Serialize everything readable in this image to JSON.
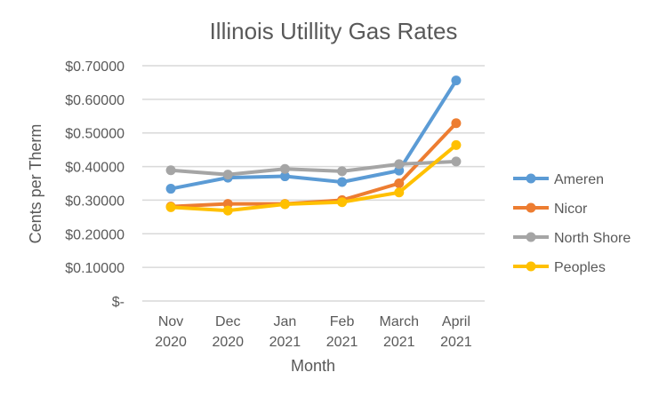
{
  "chart_data": {
    "type": "line",
    "title": "Illinois Utillity Gas Rates",
    "xlabel": "Month",
    "ylabel": "Cents per Therm",
    "categories": [
      [
        "Nov",
        "2020"
      ],
      [
        "Dec",
        "2020"
      ],
      [
        "Jan",
        "2021"
      ],
      [
        "Feb",
        "2021"
      ],
      [
        "March",
        "2021"
      ],
      [
        "April",
        "2021"
      ]
    ],
    "ylim": [
      0,
      0.7
    ],
    "yticks": [
      {
        "value": 0,
        "label": "$-"
      },
      {
        "value": 0.1,
        "label": "$0.10000"
      },
      {
        "value": 0.2,
        "label": "$0.20000"
      },
      {
        "value": 0.3,
        "label": "$0.30000"
      },
      {
        "value": 0.4,
        "label": "$0.40000"
      },
      {
        "value": 0.5,
        "label": "$0.50000"
      },
      {
        "value": 0.6,
        "label": "$0.60000"
      },
      {
        "value": 0.7,
        "label": "$0.70000"
      }
    ],
    "grid": true,
    "legend_position": "right",
    "series": [
      {
        "name": "Ameren",
        "color": "#5b9bd5",
        "values": [
          0.334,
          0.367,
          0.371,
          0.354,
          0.388,
          0.656
        ]
      },
      {
        "name": "Nicor",
        "color": "#ed7d31",
        "values": [
          0.281,
          0.289,
          0.289,
          0.3,
          0.35,
          0.529
        ]
      },
      {
        "name": "North Shore",
        "color": "#a5a5a5",
        "values": [
          0.389,
          0.376,
          0.393,
          0.386,
          0.407,
          0.415
        ]
      },
      {
        "name": "Peoples",
        "color": "#ffc000",
        "values": [
          0.279,
          0.269,
          0.288,
          0.294,
          0.323,
          0.464
        ]
      }
    ]
  }
}
